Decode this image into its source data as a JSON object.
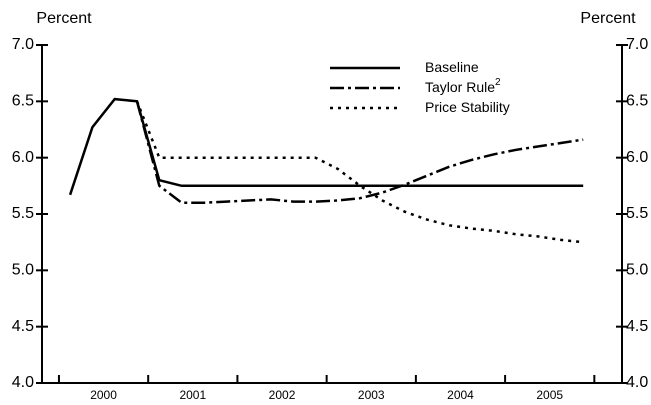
{
  "chart_data": {
    "type": "line",
    "y_label": "Percent",
    "y2_label": "Percent",
    "x": [
      2000.125,
      2000.375,
      2000.625,
      2000.875,
      2001.125,
      2001.375,
      2001.625,
      2001.875,
      2002.125,
      2002.375,
      2002.625,
      2002.875,
      2003.125,
      2003.375,
      2003.625,
      2003.875,
      2004.125,
      2004.375,
      2004.625,
      2004.875,
      2005.125,
      2005.375,
      2005.625,
      2005.875
    ],
    "series": [
      {
        "name": "Baseline",
        "color": "#000000",
        "style": "solid",
        "values": [
          5.67,
          6.27,
          6.52,
          6.5,
          5.8,
          5.75,
          5.75,
          5.75,
          5.75,
          5.75,
          5.75,
          5.75,
          5.75,
          5.75,
          5.75,
          5.75,
          5.75,
          5.75,
          5.75,
          5.75,
          5.75,
          5.75,
          5.75,
          5.75
        ]
      },
      {
        "name": "Taylor Rule",
        "name_note": "2",
        "color": "#000000",
        "style": "dashdot",
        "values": [
          null,
          null,
          null,
          6.5,
          5.75,
          5.6,
          5.6,
          5.61,
          5.62,
          5.63,
          5.61,
          5.61,
          5.62,
          5.64,
          5.69,
          5.76,
          5.84,
          5.92,
          5.98,
          6.03,
          6.07,
          6.1,
          6.13,
          6.16
        ]
      },
      {
        "name": "Price Stability",
        "color": "#000000",
        "style": "dotted",
        "values": [
          null,
          null,
          null,
          6.5,
          6.0,
          6.0,
          6.0,
          6.0,
          6.0,
          6.0,
          6.0,
          6.0,
          5.9,
          5.75,
          5.62,
          5.52,
          5.45,
          5.4,
          5.37,
          5.35,
          5.32,
          5.3,
          5.27,
          5.25
        ]
      }
    ],
    "xlim": [
      1999.81,
      2006.31
    ],
    "xticks": [
      2000,
      2001,
      2002,
      2003,
      2004,
      2005,
      2006
    ],
    "xtick_labels": [
      {
        "value": 2000.5,
        "label": "2000"
      },
      {
        "value": 2001.5,
        "label": "2001"
      },
      {
        "value": 2002.5,
        "label": "2002"
      },
      {
        "value": 2003.5,
        "label": "2003"
      },
      {
        "value": 2004.5,
        "label": "2004"
      },
      {
        "value": 2005.5,
        "label": "2005"
      }
    ],
    "ylim": [
      4,
      7
    ],
    "yticks": [
      {
        "value": 4,
        "label": "4.0"
      },
      {
        "value": 4.5,
        "label": "4.5"
      },
      {
        "value": 5,
        "label": "5.0"
      },
      {
        "value": 5.5,
        "label": "5.5"
      },
      {
        "value": 6,
        "label": "6.0"
      },
      {
        "value": 6.5,
        "label": "6.5"
      },
      {
        "value": 7,
        "label": "7.0"
      }
    ],
    "y2lim": [
      4,
      7
    ],
    "y2ticks": [
      {
        "value": 4,
        "label": "4.0"
      },
      {
        "value": 4.5,
        "label": "4.5"
      },
      {
        "value": 5,
        "label": "5.0"
      },
      {
        "value": 5.5,
        "label": "5.5"
      },
      {
        "value": 6,
        "label": "6.0"
      },
      {
        "value": 6.5,
        "label": "6.5"
      },
      {
        "value": 7,
        "label": "7.0"
      }
    ],
    "legend": "top-right",
    "grid": false
  }
}
